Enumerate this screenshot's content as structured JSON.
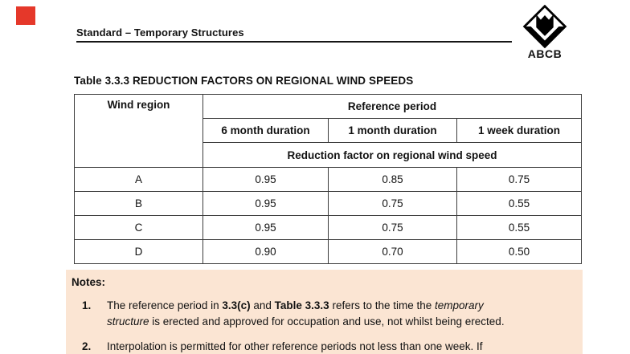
{
  "header": {
    "title": "Standard – Temporary Structures"
  },
  "logo": {
    "text": "ABCB",
    "icon": "abcb-diamond-logo"
  },
  "marker": {
    "name": "red-square",
    "color": "#e5382a"
  },
  "table_title": "Table 3.3.3 REDUCTION FACTORS ON REGIONAL WIND SPEEDS",
  "table": {
    "col1_header": "Wind region",
    "group_header": "Reference period",
    "duration_headers": [
      "6 month duration",
      "1 month duration",
      "1 week duration"
    ],
    "sub_header": "Reduction factor on regional wind speed",
    "rows": [
      {
        "region": "A",
        "values": [
          "0.95",
          "0.85",
          "0.75"
        ]
      },
      {
        "region": "B",
        "values": [
          "0.95",
          "0.75",
          "0.55"
        ]
      },
      {
        "region": "C",
        "values": [
          "0.95",
          "0.75",
          "0.55"
        ]
      },
      {
        "region": "D",
        "values": [
          "0.90",
          "0.70",
          "0.50"
        ]
      }
    ]
  },
  "notes": {
    "label": "Notes:",
    "items": [
      {
        "number": "1.",
        "lines": [
          [
            {
              "t": "The reference period in "
            },
            {
              "t": "3.3(c)",
              "b": true
            },
            {
              "t": " and "
            },
            {
              "t": "Table 3.3.3",
              "b": true
            },
            {
              "t": " refers to the time the "
            },
            {
              "t": "temporary",
              "i": true
            }
          ],
          [
            {
              "t": "structure",
              "i": true
            },
            {
              "t": " is erected and approved for occupation and use, not whilst being erected."
            }
          ]
        ]
      },
      {
        "number": "2.",
        "lines": [
          [
            {
              "t": "Interpolation is permitted for other reference periods not less than one week. If"
            }
          ]
        ]
      }
    ]
  },
  "colors": {
    "marker_red": "#e5382a",
    "notes_bg": "#fbe5d3",
    "table_border": "#3c3c3c"
  }
}
